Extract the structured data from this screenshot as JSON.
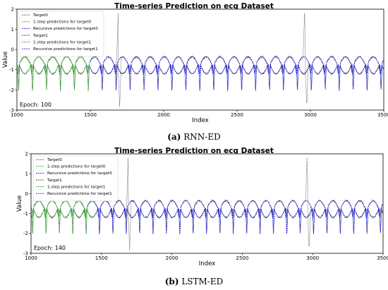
{
  "chart_data": [
    {
      "type": "line",
      "title": "Time-series Prediction on ecg Dataset",
      "xlabel": "Index",
      "ylabel": "Value",
      "xlim": [
        1000,
        3500
      ],
      "ylim": [
        -3,
        2
      ],
      "x_ticks": [
        "1000",
        "1500",
        "2000",
        "2500",
        "3000",
        "3500"
      ],
      "y_ticks": [
        "-3",
        "-2",
        "-1",
        "0",
        "1",
        "2"
      ],
      "annotation": "Epoch: 100",
      "caption_letter": "(a)",
      "caption_text": "RNN-ED",
      "legend_position": "top-left",
      "series": [
        {
          "name": "Target0",
          "color": "#555555",
          "style": "dashed-gray"
        },
        {
          "name": "1-step predictions for target0",
          "color": "#2ca02c",
          "style": "dashed"
        },
        {
          "name": "Recursive predictions for target0",
          "color": "#1f1fd6",
          "style": "dashed"
        },
        {
          "name": "Target1",
          "color": "#555555",
          "style": "dashed-gray"
        },
        {
          "name": "1-step predictions for target1",
          "color": "#2ca02c",
          "style": "dashed"
        },
        {
          "name": "Recursive predictions for target1",
          "color": "#1f1fd6",
          "style": "dashed"
        }
      ],
      "one_step_range": [
        1000,
        1500
      ],
      "recursive_range": [
        1500,
        3500
      ],
      "beat_period": 95,
      "spikes": [
        {
          "x": 1690,
          "y": 1.8
        },
        {
          "x": 2960,
          "y": 1.8
        }
      ],
      "dips": [
        {
          "x": 1700,
          "y": -2.85
        },
        {
          "x": 2975,
          "y": -2.85
        }
      ]
    },
    {
      "type": "line",
      "title": "Time-series Prediction on ecg Dataset",
      "xlabel": "Index",
      "ylabel": "Value",
      "xlim": [
        1000,
        3500
      ],
      "ylim": [
        -3,
        2
      ],
      "x_ticks": [
        "1000",
        "1500",
        "2000",
        "2500",
        "3000",
        "3500"
      ],
      "y_ticks": [
        "-3",
        "-2",
        "-1",
        "0",
        "1",
        "2"
      ],
      "annotation": "Epoch: 140",
      "caption_letter": "(b)",
      "caption_text": "LSTM-ED",
      "legend_position": "top-left",
      "series": [
        {
          "name": "Target0",
          "color": "#555555",
          "style": "dashed-gray"
        },
        {
          "name": "1-step predictions for target0",
          "color": "#2ca02c",
          "style": "dashed"
        },
        {
          "name": "Recursive predictions for target0",
          "color": "#1f1fd6",
          "style": "dashed"
        },
        {
          "name": "Target1",
          "color": "#555555",
          "style": "dashed-gray"
        },
        {
          "name": "1-step predictions for target1",
          "color": "#2ca02c",
          "style": "dashed"
        },
        {
          "name": "Recursive predictions for target1",
          "color": "#1f1fd6",
          "style": "dashed"
        }
      ],
      "one_step_range": [
        1000,
        1450
      ],
      "recursive_range": [
        1450,
        3500
      ],
      "beat_period": 95,
      "spikes": [
        {
          "x": 1690,
          "y": 1.8
        },
        {
          "x": 2960,
          "y": 1.8
        }
      ],
      "dips": [
        {
          "x": 1700,
          "y": -2.85
        },
        {
          "x": 2975,
          "y": -2.85
        }
      ]
    }
  ]
}
